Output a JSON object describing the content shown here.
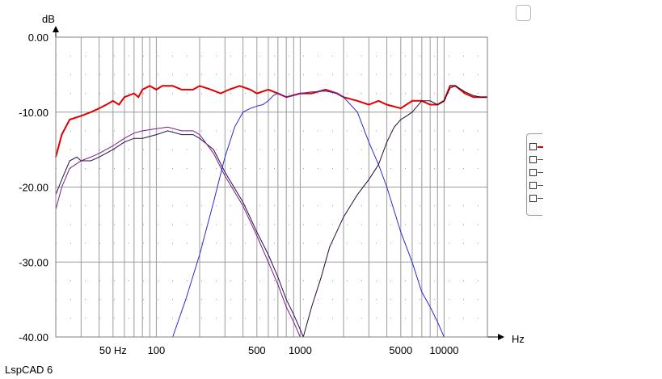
{
  "app_label": "LspCAD 6",
  "chart_data": {
    "type": "line",
    "ylabel": "dB",
    "xlabel": "Hz",
    "x_scale": "log",
    "xlim": [
      20,
      20000
    ],
    "ylim": [
      -40,
      0
    ],
    "y_ticks": [
      {
        "value": 0,
        "label": "0.00"
      },
      {
        "value": -10,
        "label": "-10.00"
      },
      {
        "value": -20,
        "label": "-20.00"
      },
      {
        "value": -30,
        "label": "-30.00"
      },
      {
        "value": -40,
        "label": "-40.00"
      }
    ],
    "x_ticks": [
      {
        "value": 50,
        "label": "50 Hz"
      },
      {
        "value": 100,
        "label": "100"
      },
      {
        "value": 500,
        "label": "500"
      },
      {
        "value": 1000,
        "label": "1000"
      },
      {
        "value": 5000,
        "label": "5000"
      },
      {
        "value": 10000,
        "label": "10000"
      }
    ],
    "grid": true,
    "series": [
      {
        "color": "#e00000",
        "points": [
          [
            20,
            -16
          ],
          [
            22,
            -13
          ],
          [
            25,
            -11
          ],
          [
            30,
            -10.5
          ],
          [
            35,
            -10
          ],
          [
            40,
            -9.5
          ],
          [
            45,
            -9
          ],
          [
            50,
            -8.5
          ],
          [
            55,
            -9
          ],
          [
            60,
            -8
          ],
          [
            70,
            -7.5
          ],
          [
            75,
            -8
          ],
          [
            80,
            -7
          ],
          [
            90,
            -6.5
          ],
          [
            100,
            -7
          ],
          [
            110,
            -6.5
          ],
          [
            130,
            -6.5
          ],
          [
            150,
            -7
          ],
          [
            180,
            -7
          ],
          [
            200,
            -6.5
          ],
          [
            240,
            -7
          ],
          [
            280,
            -7.5
          ],
          [
            320,
            -7
          ],
          [
            380,
            -6.5
          ],
          [
            450,
            -7
          ],
          [
            500,
            -7.5
          ],
          [
            600,
            -7
          ],
          [
            700,
            -7.5
          ],
          [
            800,
            -8
          ],
          [
            1000,
            -7.5
          ],
          [
            1200,
            -7.5
          ],
          [
            1500,
            -7
          ],
          [
            1800,
            -7.5
          ],
          [
            2000,
            -8
          ],
          [
            2500,
            -8.5
          ],
          [
            3000,
            -9
          ],
          [
            3500,
            -8.5
          ],
          [
            4000,
            -9
          ],
          [
            5000,
            -9.5
          ],
          [
            6000,
            -8.5
          ],
          [
            7000,
            -8.5
          ],
          [
            8000,
            -9
          ],
          [
            9000,
            -9
          ],
          [
            10000,
            -8.5
          ],
          [
            11000,
            -6.5
          ],
          [
            12000,
            -6.5
          ],
          [
            14000,
            -7.5
          ],
          [
            16000,
            -8
          ],
          [
            18000,
            -8
          ],
          [
            20000,
            -8
          ]
        ]
      },
      {
        "color": "#22104a",
        "points": [
          [
            20,
            -21
          ],
          [
            22,
            -19
          ],
          [
            25,
            -16.5
          ],
          [
            28,
            -16
          ],
          [
            30,
            -16.5
          ],
          [
            35,
            -16.5
          ],
          [
            40,
            -16
          ],
          [
            50,
            -15
          ],
          [
            60,
            -14
          ],
          [
            70,
            -13.5
          ],
          [
            80,
            -13.5
          ],
          [
            100,
            -13
          ],
          [
            120,
            -12.5
          ],
          [
            150,
            -13
          ],
          [
            180,
            -13
          ],
          [
            200,
            -13.5
          ],
          [
            250,
            -15
          ],
          [
            300,
            -18
          ],
          [
            400,
            -22
          ],
          [
            500,
            -26
          ],
          [
            600,
            -29
          ],
          [
            700,
            -32
          ],
          [
            800,
            -35
          ],
          [
            900,
            -37
          ],
          [
            1000,
            -39
          ],
          [
            1050,
            -40
          ]
        ]
      },
      {
        "color": "#7b1a8c",
        "points": [
          [
            20,
            -23
          ],
          [
            22,
            -20
          ],
          [
            25,
            -17.5
          ],
          [
            30,
            -16.5
          ],
          [
            35,
            -16
          ],
          [
            40,
            -15.5
          ],
          [
            50,
            -14.5
          ],
          [
            60,
            -13.5
          ],
          [
            70,
            -12.8
          ],
          [
            80,
            -12.5
          ],
          [
            100,
            -12.2
          ],
          [
            120,
            -12
          ],
          [
            150,
            -12.5
          ],
          [
            180,
            -12.5
          ],
          [
            200,
            -13
          ],
          [
            250,
            -15.5
          ],
          [
            300,
            -18.5
          ],
          [
            400,
            -22.5
          ],
          [
            500,
            -26.5
          ],
          [
            600,
            -30
          ],
          [
            700,
            -33
          ],
          [
            800,
            -36
          ],
          [
            900,
            -38
          ],
          [
            1000,
            -40
          ]
        ]
      },
      {
        "color": "#2a2acc",
        "points": [
          [
            130,
            -40
          ],
          [
            160,
            -35
          ],
          [
            200,
            -29
          ],
          [
            250,
            -22
          ],
          [
            300,
            -16
          ],
          [
            350,
            -12
          ],
          [
            400,
            -10
          ],
          [
            450,
            -9.5
          ],
          [
            500,
            -9.2
          ],
          [
            550,
            -9
          ],
          [
            600,
            -8.5
          ],
          [
            650,
            -7.8
          ],
          [
            700,
            -7.5
          ],
          [
            800,
            -8
          ],
          [
            900,
            -7.8
          ],
          [
            1000,
            -7.5
          ],
          [
            1200,
            -7.3
          ],
          [
            1500,
            -7.2
          ],
          [
            1800,
            -7.5
          ],
          [
            2000,
            -8
          ],
          [
            2500,
            -10
          ],
          [
            3000,
            -14
          ],
          [
            3500,
            -17
          ],
          [
            4000,
            -20
          ],
          [
            5000,
            -26
          ],
          [
            6000,
            -30
          ],
          [
            7000,
            -34
          ],
          [
            8000,
            -36
          ],
          [
            9000,
            -38
          ],
          [
            10000,
            -40
          ]
        ]
      },
      {
        "color": "#280a30",
        "points": [
          [
            1050,
            -40
          ],
          [
            1200,
            -36
          ],
          [
            1400,
            -32
          ],
          [
            1600,
            -28
          ],
          [
            2000,
            -24
          ],
          [
            2500,
            -21
          ],
          [
            3000,
            -19
          ],
          [
            3500,
            -17
          ],
          [
            4000,
            -14
          ],
          [
            4500,
            -12
          ],
          [
            5000,
            -11
          ],
          [
            5500,
            -10.5
          ],
          [
            6000,
            -10
          ],
          [
            7000,
            -8.5
          ],
          [
            8000,
            -8.5
          ],
          [
            9000,
            -9
          ],
          [
            10000,
            -8.5
          ],
          [
            11000,
            -6.8
          ],
          [
            12000,
            -6.5
          ],
          [
            14000,
            -7.3
          ],
          [
            16000,
            -7.8
          ],
          [
            18000,
            -8
          ],
          [
            20000,
            -8
          ]
        ]
      }
    ]
  },
  "legend": {
    "items": [
      {
        "color": "#e00000"
      },
      {
        "color": "#555555"
      },
      {
        "color": "#555555"
      },
      {
        "color": "#555555"
      },
      {
        "color": "#555555"
      }
    ]
  }
}
